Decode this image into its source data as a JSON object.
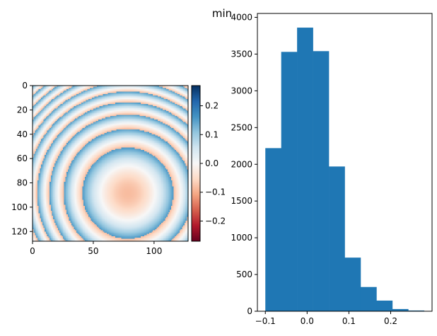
{
  "figure": {
    "suptitle": "min"
  },
  "chart_data": [
    {
      "type": "heatmap",
      "title": "",
      "xlabel": "",
      "ylabel": "",
      "colormap": "RdBu",
      "image_size": [
        128,
        128
      ],
      "description_of_field": "phase-wrapped concentric rings centred near (78, 88)",
      "center": [
        78,
        88
      ],
      "xlim": [
        0,
        128
      ],
      "ylim": [
        128,
        0
      ],
      "xticks": [
        0,
        50,
        100
      ],
      "yticks": [
        0,
        20,
        40,
        60,
        80,
        100,
        120
      ],
      "colorbar": {
        "vmin": -0.27,
        "vmax": 0.27,
        "ticks": [
          -0.2,
          -0.1,
          0.0,
          0.1,
          0.2
        ],
        "tick_labels": [
          "−0.2",
          "−0.1",
          "0.0",
          "0.1",
          "0.2"
        ]
      }
    },
    {
      "type": "bar",
      "title": "",
      "xlabel": "",
      "ylabel": "",
      "bin_edges": [
        -0.1,
        -0.062,
        -0.024,
        0.014,
        0.052,
        0.09,
        0.128,
        0.166,
        0.204,
        0.242,
        0.28
      ],
      "values": [
        2220,
        3530,
        3860,
        3540,
        1970,
        730,
        330,
        145,
        30,
        10
      ],
      "xlim": [
        -0.119,
        0.299
      ],
      "ylim": [
        0,
        4053
      ],
      "xticks": [
        -0.1,
        0.0,
        0.1,
        0.2
      ],
      "xtick_labels": [
        "−0.1",
        "0.0",
        "0.1",
        "0.2"
      ],
      "yticks": [
        0,
        500,
        1000,
        1500,
        2000,
        2500,
        3000,
        3500,
        4000
      ],
      "bar_color": "#1f77b4"
    }
  ]
}
